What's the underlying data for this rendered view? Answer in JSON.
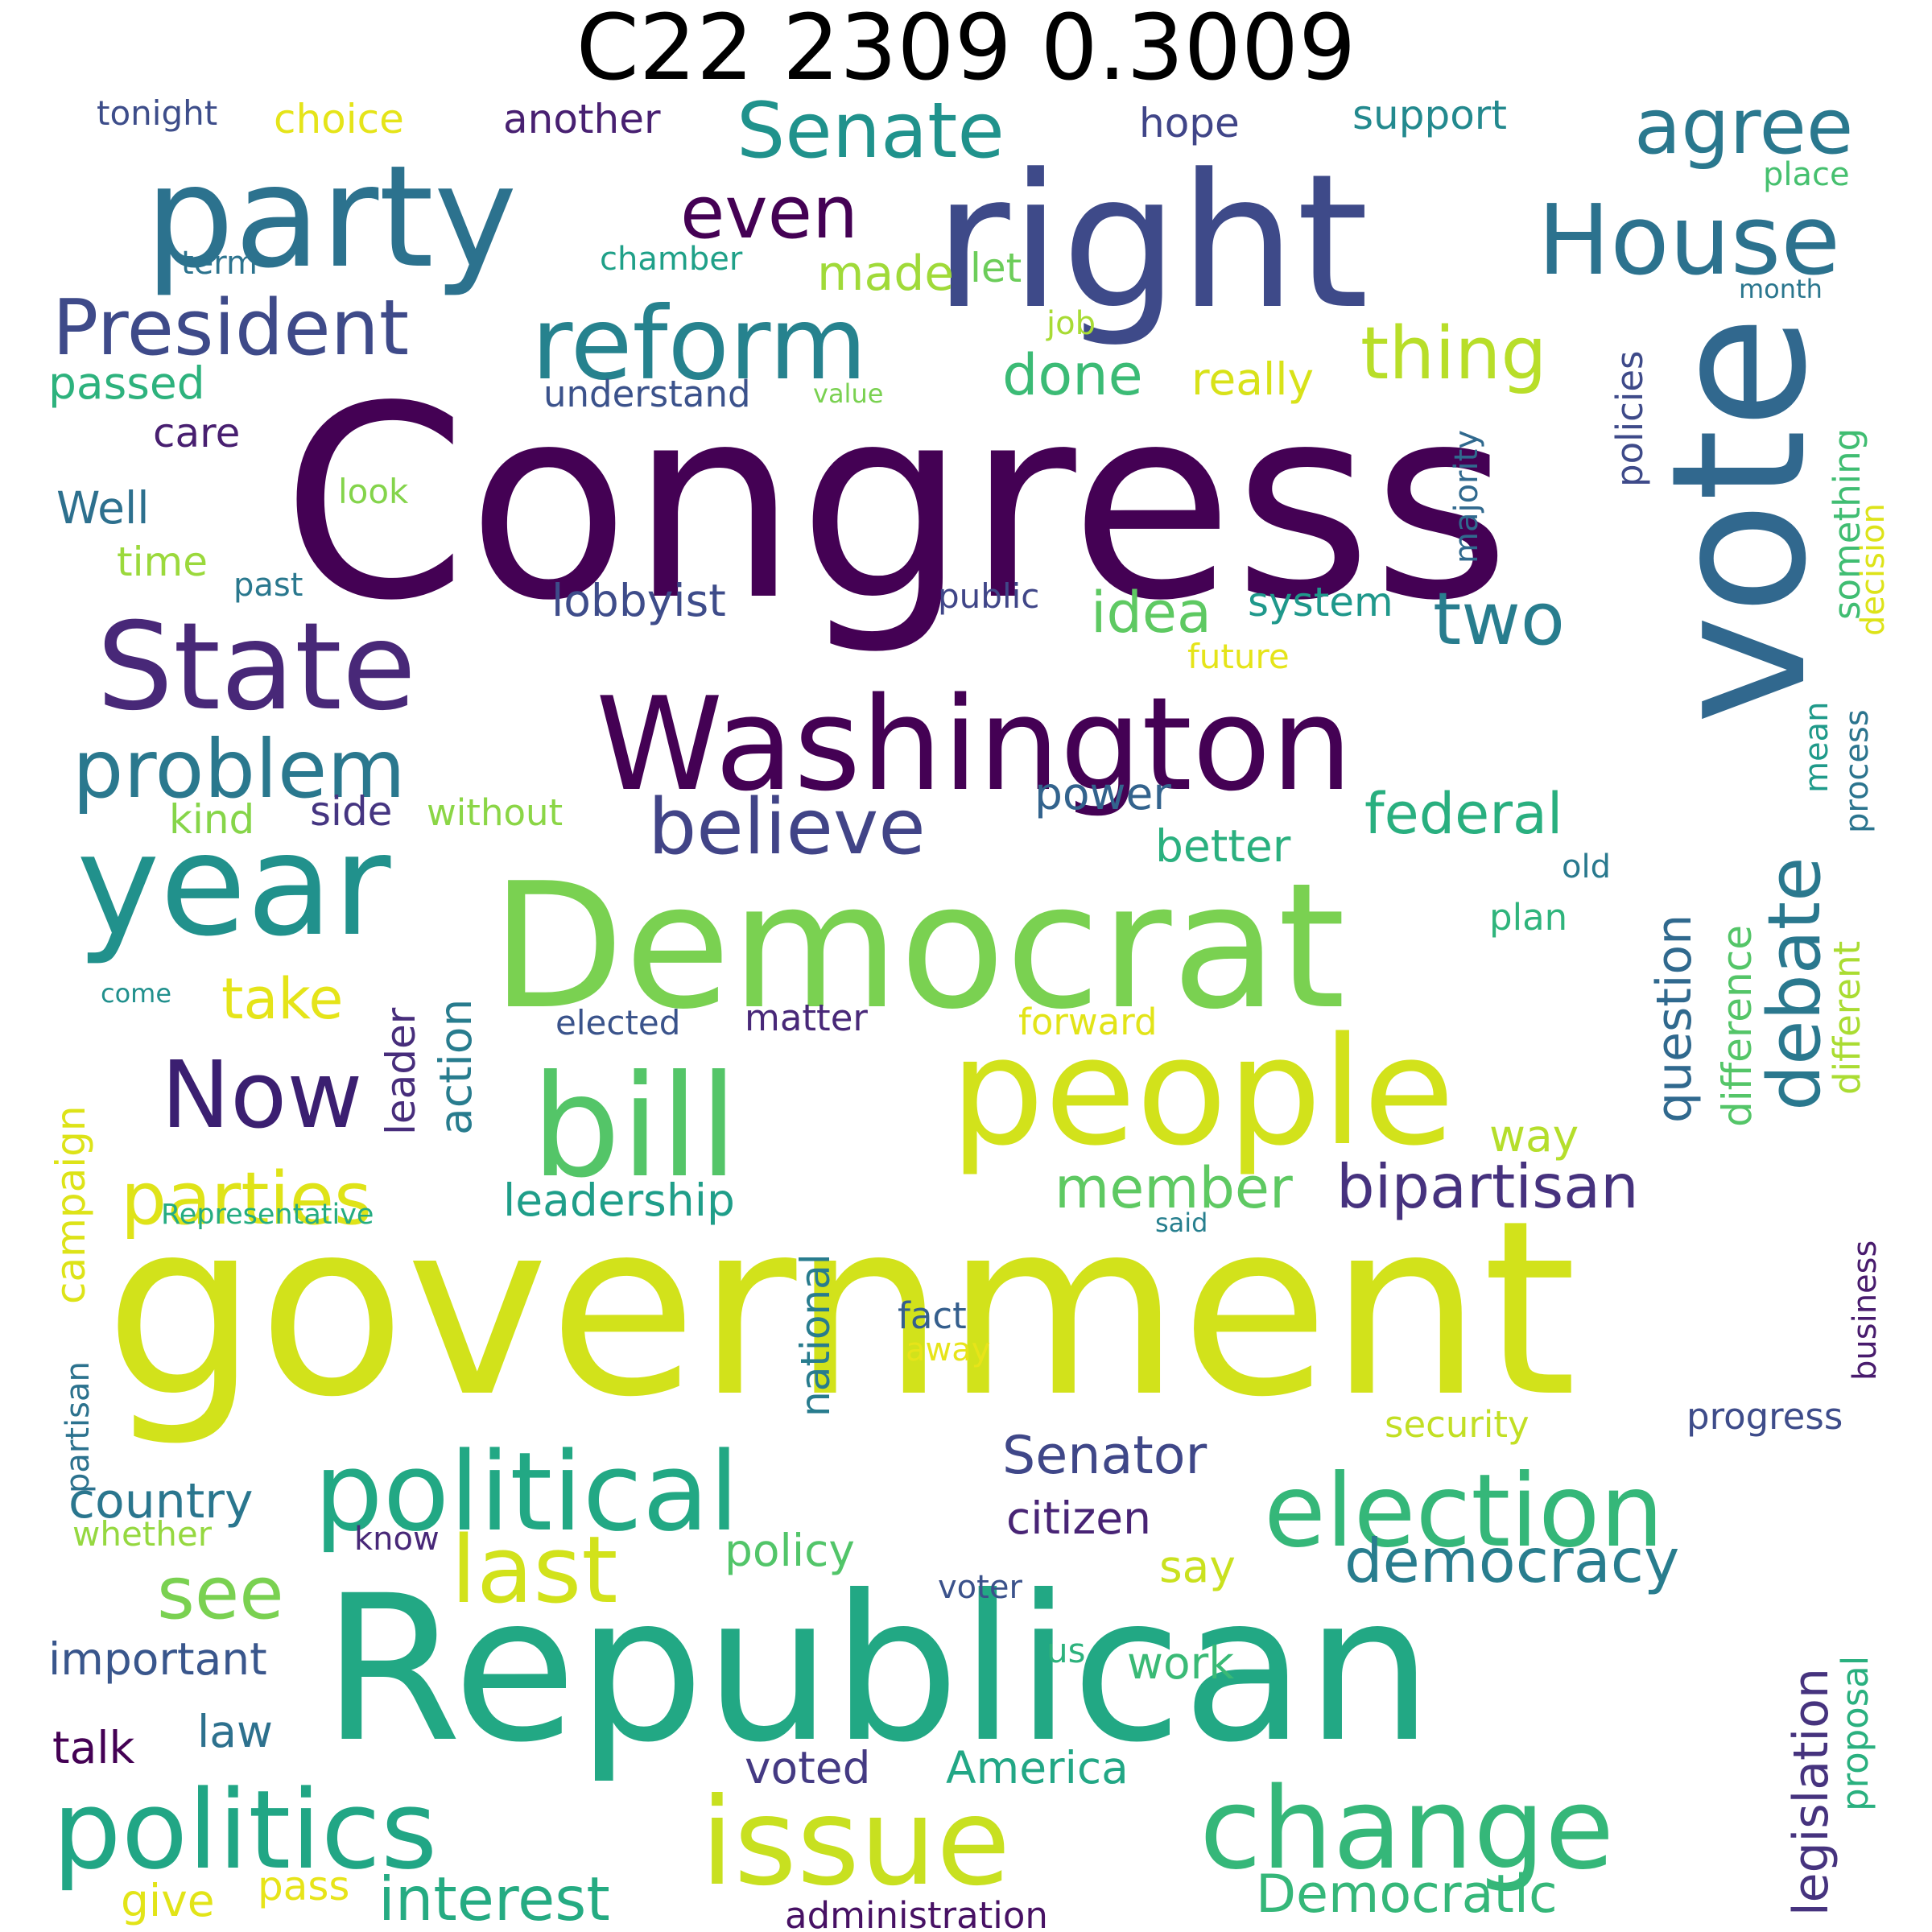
{
  "title": "C22 2309 0.3009",
  "words": [
    {
      "text": "Congress",
      "color": "#440154"
    },
    {
      "text": "government",
      "color": "#d2e21b"
    },
    {
      "text": "Republican",
      "color": "#22a884"
    },
    {
      "text": "right",
      "color": "#3e4a89"
    },
    {
      "text": "vote",
      "color": "#31688e"
    },
    {
      "text": "Democrat",
      "color": "#7ad151"
    },
    {
      "text": "Washington",
      "color": "#440154"
    },
    {
      "text": "people",
      "color": "#d2e21b"
    },
    {
      "text": "bill",
      "color": "#54c568"
    },
    {
      "text": "party",
      "color": "#2c728e"
    },
    {
      "text": "State",
      "color": "#482878"
    },
    {
      "text": "year",
      "color": "#21918c"
    },
    {
      "text": "issue",
      "color": "#c8e020"
    },
    {
      "text": "change",
      "color": "#35b779"
    },
    {
      "text": "political",
      "color": "#22a884"
    },
    {
      "text": "election",
      "color": "#35b779"
    },
    {
      "text": "politics",
      "color": "#21a685"
    },
    {
      "text": "House",
      "color": "#2c728e"
    },
    {
      "text": "reform",
      "color": "#26828e"
    },
    {
      "text": "Now",
      "color": "#3b1f71"
    },
    {
      "text": "President",
      "color": "#3e4a89"
    },
    {
      "text": "problem",
      "color": "#2a788e"
    },
    {
      "text": "last",
      "color": "#d2e21b"
    },
    {
      "text": "Senate",
      "color": "#20928c"
    },
    {
      "text": "agree",
      "color": "#2a788e"
    },
    {
      "text": "parties",
      "color": "#dfe318"
    },
    {
      "text": "believe",
      "color": "#414487"
    },
    {
      "text": "debate",
      "color": "#2a788e"
    },
    {
      "text": "thing",
      "color": "#b8de29"
    },
    {
      "text": "even",
      "color": "#440154"
    },
    {
      "text": "see",
      "color": "#7ad151"
    },
    {
      "text": "two",
      "color": "#287d8e"
    },
    {
      "text": "interest",
      "color": "#25ab82"
    },
    {
      "text": "bipartisan",
      "color": "#46327e"
    },
    {
      "text": "democracy",
      "color": "#287d8e"
    },
    {
      "text": "Senator",
      "color": "#3f4788"
    },
    {
      "text": "federal",
      "color": "#29af7f"
    },
    {
      "text": "member",
      "color": "#5ec962"
    },
    {
      "text": "Democratic",
      "color": "#35b779"
    },
    {
      "text": "take",
      "color": "#e5e419"
    },
    {
      "text": "idea",
      "color": "#5ec962"
    },
    {
      "text": "done",
      "color": "#3bbb75"
    },
    {
      "text": "legislation",
      "color": "#46337e"
    },
    {
      "text": "country",
      "color": "#2a768e"
    },
    {
      "text": "made",
      "color": "#a0da39"
    },
    {
      "text": "question",
      "color": "#30698e"
    },
    {
      "text": "power",
      "color": "#33638d"
    },
    {
      "text": "better",
      "color": "#2ab07f"
    },
    {
      "text": "leadership",
      "color": "#1f9e89"
    },
    {
      "text": "citizen",
      "color": "#482475"
    },
    {
      "text": "something",
      "color": "#40bd72"
    },
    {
      "text": "important",
      "color": "#39568c"
    },
    {
      "text": "policy",
      "color": "#52c569"
    },
    {
      "text": "action",
      "color": "#287c8e"
    },
    {
      "text": "leader",
      "color": "#472d7b"
    },
    {
      "text": "campaign",
      "color": "#dde318"
    },
    {
      "text": "America",
      "color": "#22a785"
    },
    {
      "text": "passed",
      "color": "#2db27d"
    },
    {
      "text": "lobbyist",
      "color": "#3e4c8a"
    },
    {
      "text": "law",
      "color": "#2d718e"
    },
    {
      "text": "work",
      "color": "#3aba76"
    },
    {
      "text": "really",
      "color": "#d8e219"
    },
    {
      "text": "give",
      "color": "#e2e418"
    },
    {
      "text": "way",
      "color": "#b5de2b"
    },
    {
      "text": "difference",
      "color": "#54c568"
    },
    {
      "text": "system",
      "color": "#1f988b"
    },
    {
      "text": "voted",
      "color": "#443a83"
    },
    {
      "text": "talk",
      "color": "#440154"
    },
    {
      "text": "proposal",
      "color": "#2ab07f"
    },
    {
      "text": "national",
      "color": "#287c8e"
    },
    {
      "text": "Well",
      "color": "#2d708e"
    },
    {
      "text": "decision",
      "color": "#dde318"
    },
    {
      "text": "policies",
      "color": "#3e4a89"
    },
    {
      "text": "interest2",
      "color": "#25ab82"
    },
    {
      "text": "say",
      "color": "#cae11f"
    },
    {
      "text": "different",
      "color": "#aadc32"
    },
    {
      "text": "understand",
      "color": "#3b528b"
    },
    {
      "text": "another",
      "color": "#482071"
    },
    {
      "text": "support",
      "color": "#23898e"
    },
    {
      "text": "choice",
      "color": "#e5e419"
    },
    {
      "text": "care",
      "color": "#481f70"
    },
    {
      "text": "pass",
      "color": "#e7e419"
    },
    {
      "text": "side",
      "color": "#453581"
    },
    {
      "text": "forward",
      "color": "#e2e418"
    },
    {
      "text": "kind",
      "color": "#86d549"
    },
    {
      "text": "without",
      "color": "#8bd646"
    },
    {
      "text": "mean",
      "color": "#1f9a8a"
    },
    {
      "text": "process",
      "color": "#2b748e"
    },
    {
      "text": "majority",
      "color": "#30698e"
    },
    {
      "text": "plan",
      "color": "#2fb47c"
    },
    {
      "text": "matter",
      "color": "#482878"
    },
    {
      "text": "hope",
      "color": "#404588"
    },
    {
      "text": "business",
      "color": "#481b6d"
    },
    {
      "text": "progress",
      "color": "#3e4c8a"
    },
    {
      "text": "partisan",
      "color": "#2c728e"
    },
    {
      "text": "security",
      "color": "#c2df23"
    },
    {
      "text": "administration",
      "color": "#471164"
    },
    {
      "text": "time",
      "color": "#9bd93c"
    },
    {
      "text": "fact",
      "color": "#355f8d"
    },
    {
      "text": "elected",
      "color": "#3a538b"
    },
    {
      "text": "let",
      "color": "#6ccd5a"
    },
    {
      "text": "chamber",
      "color": "#1fa088"
    },
    {
      "text": "tonight",
      "color": "#3d4d8a"
    },
    {
      "text": "term",
      "color": "#2c738e"
    },
    {
      "text": "whether",
      "color": "#95d840"
    },
    {
      "text": "future",
      "color": "#e5e419"
    },
    {
      "text": "public",
      "color": "#404688"
    },
    {
      "text": "old",
      "color": "#29798e"
    },
    {
      "text": "voter",
      "color": "#3b528b"
    },
    {
      "text": "know",
      "color": "#482878"
    },
    {
      "text": "look",
      "color": "#84d44b"
    },
    {
      "text": "past",
      "color": "#2a788e"
    },
    {
      "text": "us",
      "color": "#2db27d"
    },
    {
      "text": "away",
      "color": "#e7e419"
    },
    {
      "text": "place",
      "color": "#46c06f"
    },
    {
      "text": "job",
      "color": "#a8db34"
    },
    {
      "text": "month",
      "color": "#2a768e"
    },
    {
      "text": "value",
      "color": "#7ad151"
    },
    {
      "text": "come",
      "color": "#21908d"
    },
    {
      "text": "said",
      "color": "#277f8e"
    },
    {
      "text": "Representative",
      "color": "#25ac82"
    }
  ]
}
